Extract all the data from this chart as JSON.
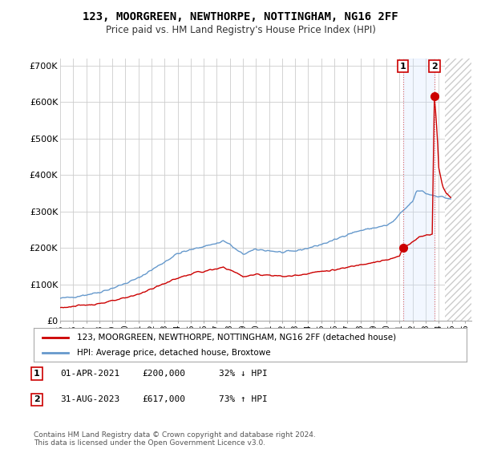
{
  "title": "123, MOORGREEN, NEWTHORPE, NOTTINGHAM, NG16 2FF",
  "subtitle": "Price paid vs. HM Land Registry's House Price Index (HPI)",
  "ylim": [
    0,
    720000
  ],
  "yticks": [
    0,
    100000,
    200000,
    300000,
    400000,
    500000,
    600000,
    700000
  ],
  "ytick_labels": [
    "£0",
    "£100K",
    "£200K",
    "£300K",
    "£400K",
    "£500K",
    "£600K",
    "£700K"
  ],
  "background_color": "#ffffff",
  "grid_color": "#cccccc",
  "hpi_color": "#6699cc",
  "price_color": "#cc0000",
  "hatch_color": "#cccccc",
  "legend_label_price": "123, MOORGREEN, NEWTHORPE, NOTTINGHAM, NG16 2FF (detached house)",
  "legend_label_hpi": "HPI: Average price, detached house, Broxtowe",
  "note1_num": "1",
  "note1_date": "01-APR-2021",
  "note1_price": "£200,000",
  "note1_hpi": "32% ↓ HPI",
  "note2_num": "2",
  "note2_date": "31-AUG-2023",
  "note2_price": "£617,000",
  "note2_hpi": "73% ↑ HPI",
  "footnote": "Contains HM Land Registry data © Crown copyright and database right 2024.\nThis data is licensed under the Open Government Licence v3.0.",
  "sale1_year": 2021.25,
  "sale1_price": 200000,
  "sale2_year": 2023.67,
  "sale2_price": 617000,
  "hatch_start": 2024.5,
  "xmin": 1995,
  "xmax": 2026.5
}
